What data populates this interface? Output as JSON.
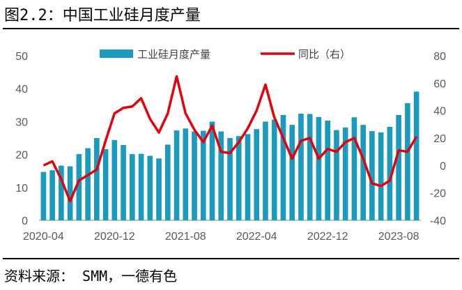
{
  "header": {
    "title": "图2.2：中国工业硅月度产量"
  },
  "footer": {
    "source": "资料来源： SMM，一德有色"
  },
  "chart_data": {
    "type": "bar",
    "title": "图2.2：中国工业硅月度产量",
    "legend_position": "top-center",
    "grid": false,
    "x_ticks": [
      "2020-04",
      "2020-12",
      "2021-08",
      "2022-04",
      "2022-12",
      "2023-08"
    ],
    "y_ticks_left": [
      "0",
      "10",
      "20",
      "30",
      "40",
      "50"
    ],
    "y_ticks_right": [
      "-40",
      "-20",
      "0",
      "20",
      "40",
      "60",
      "80"
    ],
    "ylim_left": [
      0,
      50
    ],
    "ylim_right": [
      -40,
      80
    ],
    "categories": [
      "2020-04",
      "2020-05",
      "2020-06",
      "2020-07",
      "2020-08",
      "2020-09",
      "2020-10",
      "2020-11",
      "2020-12",
      "2021-01",
      "2021-02",
      "2021-03",
      "2021-04",
      "2021-05",
      "2021-06",
      "2021-07",
      "2021-08",
      "2021-09",
      "2021-10",
      "2021-11",
      "2021-12",
      "2022-01",
      "2022-02",
      "2022-03",
      "2022-04",
      "2022-05",
      "2022-06",
      "2022-07",
      "2022-08",
      "2022-09",
      "2022-10",
      "2022-11",
      "2022-12",
      "2023-01",
      "2023-02",
      "2023-03",
      "2023-04",
      "2023-05",
      "2023-06",
      "2023-07",
      "2023-08",
      "2023-09",
      "2023-10"
    ],
    "series": [
      {
        "name": "工业硅月度产量",
        "type": "bar",
        "axis": "left",
        "color": "#1a9bbd",
        "values": [
          14.7,
          15.2,
          16.6,
          16.4,
          20.1,
          21.9,
          25.0,
          21.6,
          24.4,
          22.9,
          20.1,
          20.2,
          19.6,
          18.8,
          23.0,
          27.3,
          27.9,
          27.0,
          27.2,
          30.0,
          27.0,
          25.0,
          25.6,
          26.2,
          27.7,
          30.0,
          30.6,
          32.0,
          29.0,
          32.4,
          32.3,
          31.4,
          30.3,
          27.4,
          28.2,
          31.3,
          29.0,
          27.1,
          26.7,
          28.4,
          32.0,
          35.6,
          39.1
        ]
      },
      {
        "name": "同比（右）",
        "type": "line",
        "axis": "right",
        "color": "#e6000b",
        "values": [
          0,
          3,
          -10,
          -26,
          -11,
          -7,
          -3,
          18,
          38,
          42,
          43,
          49,
          34,
          24,
          38,
          65,
          38,
          26,
          17,
          29,
          10,
          9,
          17,
          27,
          40,
          59,
          35,
          20,
          5,
          18,
          20,
          5,
          12,
          10,
          17,
          20,
          5,
          -13,
          -15,
          -11,
          11,
          10,
          21
        ]
      }
    ]
  }
}
